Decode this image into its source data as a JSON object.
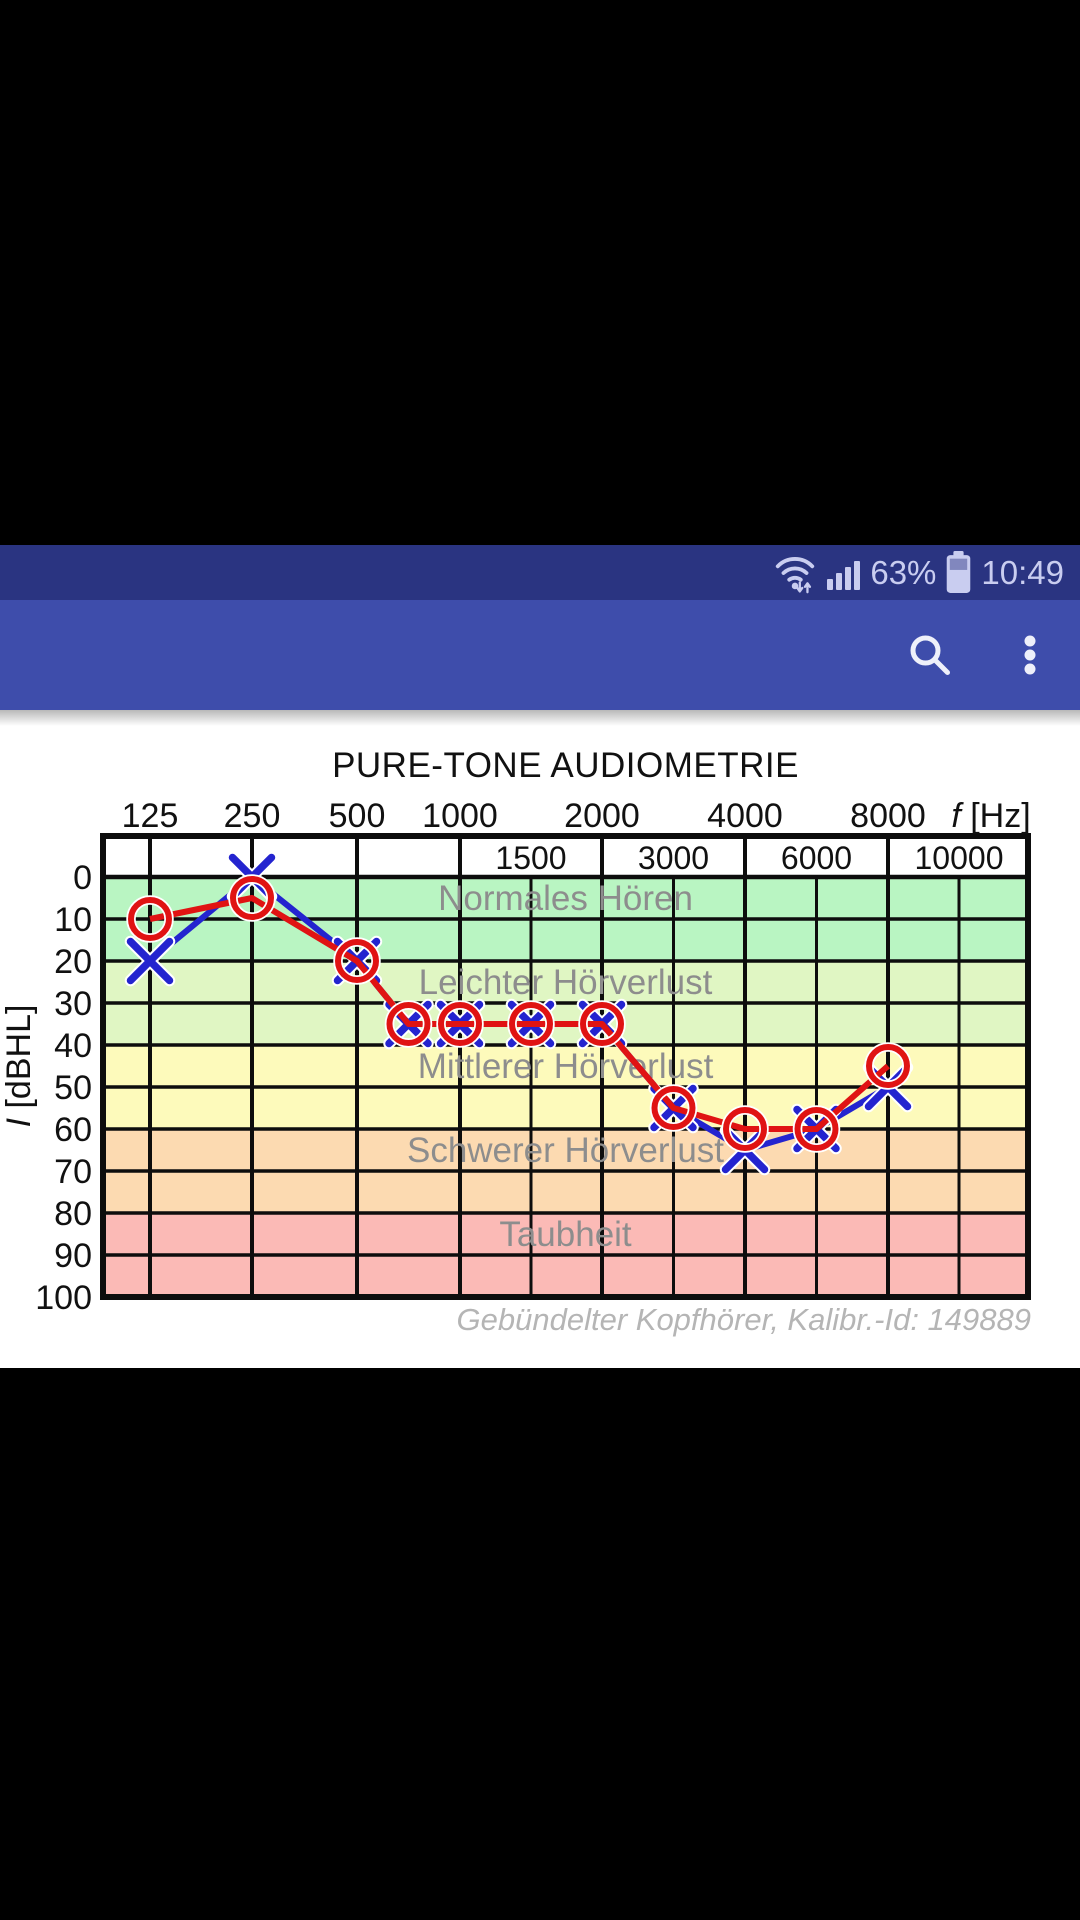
{
  "theme": {
    "screen_bg": "#000000",
    "status_bar_bg": "#2a3481",
    "app_bar_bg": "#3e4dab",
    "status_icon_color": "#c9cdf0",
    "app_icon_color": "#eef0fa",
    "content_bg": "#ffffff",
    "grid_color": "#0d0d0d",
    "zone_label_color": "#8d8d8d",
    "title_color": "#111111",
    "footer_color": "#b5b5b5"
  },
  "status_bar": {
    "time": "10:49",
    "battery_percent": "63%",
    "wifi_state": "connected",
    "signal_bars": 4
  },
  "app_bar": {
    "actions": [
      {
        "name": "search"
      },
      {
        "name": "overflow-menu"
      }
    ]
  },
  "chart_data": {
    "type": "line",
    "title": "PURE-TONE AUDIOMETRIE",
    "x_axis": {
      "label_symbol": "f",
      "label_unit": " [Hz]",
      "scale": "octave-log",
      "octave_ticks": [
        125,
        250,
        500,
        1000,
        2000,
        4000,
        8000
      ],
      "half_octave_ticks": [
        1500,
        3000,
        6000,
        10000
      ]
    },
    "y_axis": {
      "label_symbol": "I",
      "label_unit": " [dBHL]",
      "ticks": [
        0,
        10,
        20,
        30,
        40,
        50,
        60,
        70,
        80,
        90,
        100
      ],
      "range": [
        0,
        100
      ],
      "direction": "down"
    },
    "zones": [
      {
        "label": "Normales Hören",
        "from_db": 0,
        "to_db": 20,
        "color": "#b9f5c2"
      },
      {
        "label": "Leichter Hörverlust",
        "from_db": 20,
        "to_db": 40,
        "color": "#e0f6c3"
      },
      {
        "label": "Mittlerer Hörverlust",
        "from_db": 40,
        "to_db": 60,
        "color": "#fdfabb"
      },
      {
        "label": "Schwerer Hörverlust",
        "from_db": 60,
        "to_db": 80,
        "color": "#fcdab1"
      },
      {
        "label": "Taubheit",
        "from_db": 80,
        "to_db": 100,
        "color": "#fbbab6"
      }
    ],
    "series": [
      {
        "name": "left-ear",
        "symbol": "X",
        "color": "#2424cf",
        "points": [
          [
            125,
            20
          ],
          [
            250,
            0
          ],
          [
            500,
            20
          ],
          [
            750,
            35
          ],
          [
            1000,
            35
          ],
          [
            1500,
            35
          ],
          [
            2000,
            35
          ],
          [
            3000,
            55
          ],
          [
            4000,
            65
          ],
          [
            6000,
            60
          ],
          [
            8000,
            50
          ]
        ]
      },
      {
        "name": "right-ear",
        "symbol": "O",
        "color": "#e01313",
        "points": [
          [
            125,
            10
          ],
          [
            250,
            5
          ],
          [
            500,
            20
          ],
          [
            750,
            35
          ],
          [
            1000,
            35
          ],
          [
            1500,
            35
          ],
          [
            2000,
            35
          ],
          [
            3000,
            55
          ],
          [
            4000,
            60
          ],
          [
            6000,
            60
          ],
          [
            8000,
            45
          ]
        ]
      }
    ],
    "footer": "Gebündelter Kopfhörer, Kalibr.-Id: 149889"
  }
}
